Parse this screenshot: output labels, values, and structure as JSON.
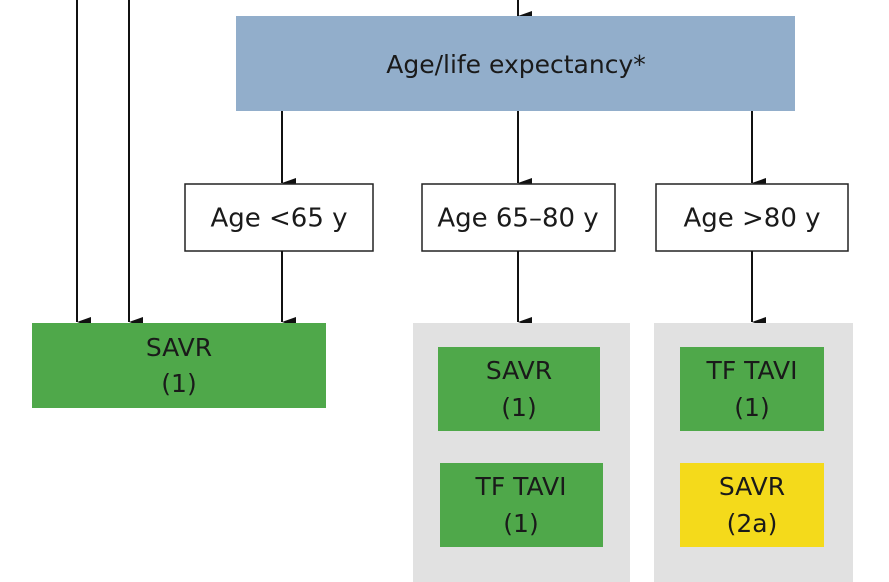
{
  "root": {
    "label": "Age/life expectancy*"
  },
  "groups": [
    {
      "label": "Age <65 y",
      "options": [
        {
          "name": "SAVR",
          "class": "(1)"
        }
      ]
    },
    {
      "label": "Age 65–80 y",
      "options": [
        {
          "name": "SAVR",
          "class": "(1)"
        },
        {
          "name": "TF TAVI",
          "class": "(1)"
        }
      ]
    },
    {
      "label": "Age >80 y",
      "options": [
        {
          "name": "TF TAVI",
          "class": "(1)"
        },
        {
          "name": "SAVR",
          "class": "(2a)"
        }
      ]
    }
  ]
}
